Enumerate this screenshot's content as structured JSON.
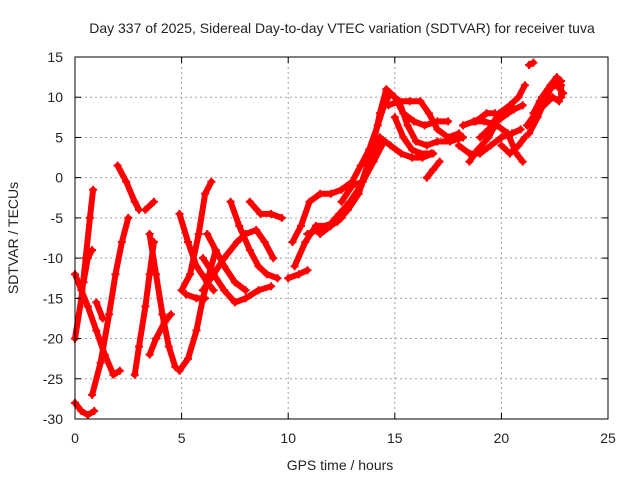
{
  "chart_data": {
    "type": "scatter",
    "title": "Day 337 of 2025, Sidereal Day-to-day VTEC variation (SDTVAR) for receiver tuva",
    "xlabel": "GPS time / hours",
    "ylabel": "SDTVAR / TECUs",
    "xlim": [
      0,
      25
    ],
    "ylim": [
      -30,
      15
    ],
    "xticks": [
      0,
      5,
      10,
      15,
      20,
      25
    ],
    "yticks": [
      -30,
      -25,
      -20,
      -15,
      -10,
      -5,
      0,
      5,
      10,
      15
    ],
    "grid": true,
    "marker": "plus",
    "color": "#ff0000",
    "series": [
      {
        "points": [
          [
            0.0,
            -12
          ],
          [
            0.3,
            -14
          ],
          [
            0.6,
            -16
          ],
          [
            1.0,
            -19
          ],
          [
            1.4,
            -22
          ],
          [
            1.8,
            -24.5
          ],
          [
            2.1,
            -24
          ]
        ]
      },
      {
        "points": [
          [
            0.0,
            -20
          ],
          [
            0.3,
            -15
          ],
          [
            0.5,
            -10
          ],
          [
            0.7,
            -5
          ],
          [
            0.85,
            -1.5
          ]
        ]
      },
      {
        "points": [
          [
            0.0,
            -28
          ],
          [
            0.3,
            -29
          ],
          [
            0.6,
            -29.5
          ],
          [
            0.9,
            -29
          ]
        ]
      },
      {
        "points": [
          [
            0.4,
            -13
          ],
          [
            0.6,
            -10
          ],
          [
            0.8,
            -9
          ]
        ]
      },
      {
        "points": [
          [
            0.8,
            -27
          ],
          [
            1.2,
            -23
          ],
          [
            1.6,
            -17
          ],
          [
            1.9,
            -12
          ],
          [
            2.2,
            -8
          ],
          [
            2.5,
            -5
          ]
        ]
      },
      {
        "points": [
          [
            1.0,
            -15.5
          ],
          [
            1.3,
            -17.5
          ]
        ]
      },
      {
        "points": [
          [
            2.0,
            1.5
          ],
          [
            2.4,
            -0.5
          ],
          [
            2.8,
            -3
          ],
          [
            3.0,
            -4
          ]
        ]
      },
      {
        "points": [
          [
            2.8,
            -24.5
          ],
          [
            3.0,
            -21
          ],
          [
            3.3,
            -16
          ],
          [
            3.5,
            -12
          ],
          [
            3.7,
            -8
          ]
        ]
      },
      {
        "points": [
          [
            3.3,
            -4
          ],
          [
            3.7,
            -3
          ]
        ]
      },
      {
        "points": [
          [
            3.5,
            -7
          ],
          [
            3.8,
            -12
          ],
          [
            4.1,
            -17
          ],
          [
            4.4,
            -21
          ],
          [
            4.7,
            -23.5
          ]
        ]
      },
      {
        "points": [
          [
            3.5,
            -22
          ],
          [
            3.8,
            -20
          ],
          [
            4.2,
            -18
          ],
          [
            4.5,
            -17
          ]
        ]
      },
      {
        "points": [
          [
            4.9,
            -24
          ],
          [
            5.3,
            -22.5
          ],
          [
            5.7,
            -19
          ],
          [
            6.0,
            -15
          ],
          [
            6.3,
            -12
          ],
          [
            6.6,
            -9
          ]
        ]
      },
      {
        "points": [
          [
            4.9,
            -4.5
          ],
          [
            5.3,
            -8
          ],
          [
            5.7,
            -11
          ],
          [
            6.2,
            -13
          ],
          [
            6.5,
            -14
          ]
        ]
      },
      {
        "points": [
          [
            5.0,
            -14
          ],
          [
            5.4,
            -12
          ],
          [
            5.8,
            -7
          ],
          [
            6.1,
            -2
          ],
          [
            6.4,
            -0.5
          ]
        ]
      },
      {
        "points": [
          [
            5.2,
            -14.5
          ],
          [
            5.7,
            -15
          ],
          [
            6.1,
            -15
          ]
        ]
      },
      {
        "points": [
          [
            6.0,
            -14
          ],
          [
            6.5,
            -12
          ],
          [
            7.0,
            -10
          ],
          [
            7.6,
            -8
          ],
          [
            8.0,
            -7
          ],
          [
            8.5,
            -6.5
          ],
          [
            8.9,
            -8
          ],
          [
            9.3,
            -10
          ]
        ]
      },
      {
        "points": [
          [
            6.0,
            -10
          ],
          [
            6.5,
            -12
          ],
          [
            7.0,
            -14
          ],
          [
            7.5,
            -15.5
          ],
          [
            8.0,
            -15
          ],
          [
            8.6,
            -14
          ],
          [
            9.2,
            -13.5
          ]
        ]
      },
      {
        "points": [
          [
            7.3,
            -3
          ],
          [
            7.7,
            -6
          ],
          [
            8.2,
            -9
          ],
          [
            8.6,
            -11
          ],
          [
            9.0,
            -12
          ],
          [
            9.5,
            -12.5
          ]
        ]
      },
      {
        "points": [
          [
            8.2,
            -3
          ],
          [
            8.7,
            -4.5
          ],
          [
            9.2,
            -4.5
          ],
          [
            9.7,
            -5
          ]
        ]
      },
      {
        "points": [
          [
            6.2,
            -7
          ],
          [
            6.6,
            -9
          ],
          [
            7.0,
            -11
          ],
          [
            7.5,
            -13
          ],
          [
            8.0,
            -14
          ]
        ]
      },
      {
        "points": [
          [
            10.0,
            -12.5
          ],
          [
            10.5,
            -12
          ],
          [
            10.9,
            -11.5
          ]
        ]
      },
      {
        "points": [
          [
            10.2,
            -8
          ],
          [
            10.6,
            -6
          ],
          [
            11.0,
            -3
          ],
          [
            11.5,
            -2
          ],
          [
            12.0,
            -2
          ],
          [
            12.5,
            -1.5
          ],
          [
            13.0,
            -0.5
          ],
          [
            13.4,
            1.5
          ],
          [
            13.8,
            3.5
          ],
          [
            14.2,
            6.5
          ],
          [
            14.5,
            9
          ],
          [
            14.8,
            10.5
          ],
          [
            15.2,
            9.5
          ],
          [
            15.6,
            6.5
          ],
          [
            16.0,
            4.5
          ],
          [
            16.5,
            4
          ],
          [
            17.0,
            4.5
          ],
          [
            17.6,
            4.5
          ],
          [
            18.2,
            5
          ]
        ]
      },
      {
        "points": [
          [
            10.3,
            -11
          ],
          [
            10.8,
            -8
          ],
          [
            11.3,
            -6
          ],
          [
            11.8,
            -6
          ],
          [
            12.3,
            -5.5
          ],
          [
            12.8,
            -4
          ],
          [
            13.3,
            -2
          ],
          [
            13.8,
            2
          ],
          [
            14.3,
            5
          ],
          [
            14.8,
            4
          ],
          [
            15.3,
            3
          ],
          [
            15.8,
            2.5
          ],
          [
            16.3,
            2.5
          ],
          [
            16.8,
            3
          ]
        ]
      },
      {
        "points": [
          [
            10.9,
            -7
          ],
          [
            11.4,
            -6.5
          ],
          [
            11.9,
            -6
          ],
          [
            12.4,
            -4.5
          ],
          [
            12.9,
            -3
          ],
          [
            13.4,
            -1
          ],
          [
            13.9,
            3
          ],
          [
            14.3,
            8
          ],
          [
            14.6,
            11
          ],
          [
            15.0,
            10
          ],
          [
            15.4,
            8
          ],
          [
            15.9,
            7
          ],
          [
            16.4,
            6.5
          ],
          [
            17.0,
            7
          ],
          [
            17.5,
            7
          ]
        ]
      },
      {
        "points": [
          [
            11.5,
            -7
          ],
          [
            12.0,
            -6
          ],
          [
            12.5,
            -5
          ]
        ]
      },
      {
        "points": [
          [
            12.5,
            -3
          ],
          [
            13.0,
            -1
          ],
          [
            13.5,
            -0.5
          ],
          [
            14.0,
            2
          ],
          [
            14.5,
            4.5
          ]
        ]
      },
      {
        "points": [
          [
            14.7,
            9
          ],
          [
            15.2,
            9.5
          ],
          [
            15.7,
            9.5
          ],
          [
            16.2,
            9.5
          ],
          [
            16.6,
            8
          ],
          [
            17.0,
            6
          ],
          [
            17.5,
            5
          ],
          [
            18.0,
            5.5
          ]
        ]
      },
      {
        "points": [
          [
            15.0,
            7.5
          ],
          [
            15.4,
            5
          ],
          [
            15.8,
            3.5
          ],
          [
            16.2,
            3
          ],
          [
            16.7,
            3
          ]
        ]
      },
      {
        "points": [
          [
            16.5,
            0
          ],
          [
            16.8,
            1
          ],
          [
            17.1,
            2
          ]
        ]
      },
      {
        "points": [
          [
            18.0,
            4
          ],
          [
            18.5,
            3
          ],
          [
            19.0,
            3
          ],
          [
            19.5,
            4
          ],
          [
            20.0,
            5
          ],
          [
            20.5,
            5.5
          ],
          [
            20.9,
            6
          ]
        ]
      },
      {
        "points": [
          [
            18.2,
            6.5
          ],
          [
            18.7,
            7
          ],
          [
            19.2,
            7
          ],
          [
            19.8,
            6.5
          ],
          [
            20.3,
            5.5
          ],
          [
            20.7,
            3
          ],
          [
            21.0,
            2
          ]
        ]
      },
      {
        "points": [
          [
            18.5,
            2
          ],
          [
            18.9,
            3.5
          ],
          [
            19.4,
            5
          ],
          [
            19.8,
            7
          ],
          [
            20.3,
            8
          ],
          [
            20.6,
            8.5
          ],
          [
            21.0,
            9
          ]
        ]
      },
      {
        "points": [
          [
            19.0,
            5
          ],
          [
            19.4,
            6
          ],
          [
            19.9,
            8
          ],
          [
            20.4,
            9
          ],
          [
            20.8,
            10
          ],
          [
            21.1,
            11.5
          ]
        ]
      },
      {
        "points": [
          [
            18.8,
            7
          ],
          [
            19.3,
            8
          ],
          [
            19.7,
            8
          ]
        ]
      },
      {
        "points": [
          [
            20.0,
            4
          ],
          [
            20.4,
            3
          ],
          [
            20.8,
            4
          ],
          [
            21.1,
            5
          ]
        ]
      },
      {
        "points": [
          [
            21.3,
            14
          ],
          [
            21.5,
            14.3
          ]
        ]
      },
      {
        "points": [
          [
            21.5,
            8
          ],
          [
            21.9,
            10
          ],
          [
            22.3,
            11.5
          ],
          [
            22.6,
            12.5
          ],
          [
            22.8,
            11.5
          ],
          [
            22.8,
            10
          ]
        ]
      },
      {
        "points": [
          [
            21.3,
            5.5
          ],
          [
            21.7,
            7.5
          ],
          [
            22.1,
            10
          ],
          [
            22.5,
            12
          ],
          [
            22.8,
            12
          ]
        ]
      },
      {
        "points": [
          [
            21.2,
            6.5
          ],
          [
            21.6,
            8
          ],
          [
            22.0,
            9
          ],
          [
            22.4,
            10
          ],
          [
            22.7,
            9.5
          ]
        ]
      },
      {
        "points": [
          [
            21.8,
            9.5
          ],
          [
            22.2,
            11
          ],
          [
            22.6,
            11.5
          ],
          [
            22.9,
            10.5
          ]
        ]
      }
    ]
  }
}
